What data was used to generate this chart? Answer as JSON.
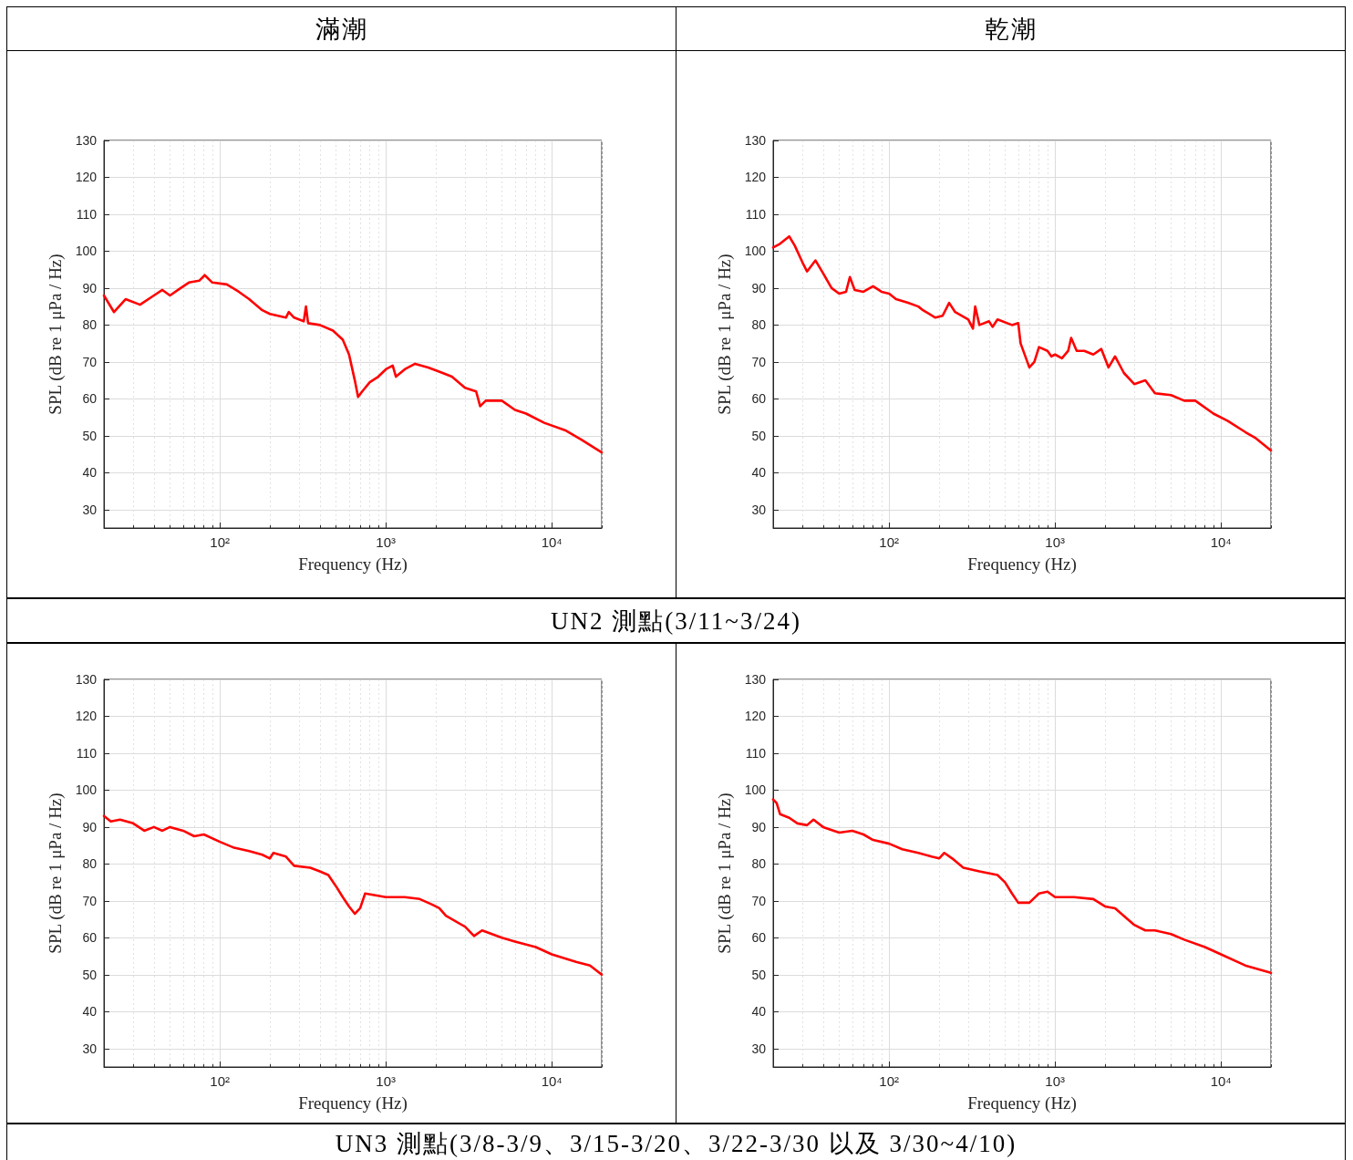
{
  "chart_data": [
    {
      "type": "line",
      "title": "滿潮",
      "annotations": [
        "UN2 測點(3/11~3/24)"
      ],
      "xlabel": "Frequency (Hz)",
      "ylabel": "SPL (dB re 1 μPa / Hz)",
      "log": "x",
      "grid": true,
      "xlim": [
        20,
        20000
      ],
      "xticks": [
        {
          "value": 100,
          "label": "10²"
        },
        {
          "value": 1000,
          "label": "10³"
        },
        {
          "value": 10000,
          "label": "10⁴"
        }
      ],
      "ylim": [
        25,
        130
      ],
      "yticks": [
        30,
        40,
        50,
        60,
        70,
        80,
        90,
        100,
        110,
        120,
        130
      ],
      "x": [
        20,
        23,
        27,
        33,
        40,
        45,
        50,
        58,
        65,
        75,
        81,
        90,
        110,
        130,
        150,
        180,
        200,
        250,
        260,
        280,
        320,
        330,
        340,
        400,
        480,
        550,
        600,
        650,
        680,
        720,
        800,
        900,
        1000,
        1100,
        1150,
        1300,
        1500,
        1800,
        2200,
        2500,
        3000,
        3500,
        3700,
        4000,
        5000,
        6000,
        7000,
        9000,
        12000,
        15000,
        20000
      ],
      "series": [
        {
          "color": "#ff0000",
          "values": [
            88,
            83.5,
            87,
            85.5,
            88,
            89.5,
            88,
            90,
            91.5,
            92,
            93.5,
            91.5,
            91,
            89,
            87,
            84,
            83,
            82,
            83.5,
            82,
            81,
            85,
            80.5,
            80,
            78.5,
            76,
            72,
            65,
            60.5,
            62,
            64.5,
            66,
            68,
            69,
            66,
            68,
            69.5,
            68.5,
            67,
            66,
            63,
            62,
            58,
            59.5,
            59.5,
            57,
            56,
            53.5,
            51.5,
            49,
            45.5
          ]
        }
      ]
    },
    {
      "type": "line",
      "title": "乾潮",
      "xlabel": "Frequency (Hz)",
      "ylabel": "SPL (dB re 1 μPa / Hz)",
      "log": "x",
      "grid": true,
      "xlim": [
        20,
        20000
      ],
      "xticks": [
        {
          "value": 100,
          "label": "10²"
        },
        {
          "value": 1000,
          "label": "10³"
        },
        {
          "value": 10000,
          "label": "10⁴"
        }
      ],
      "ylim": [
        25,
        130
      ],
      "yticks": [
        30,
        40,
        50,
        60,
        70,
        80,
        90,
        100,
        110,
        120,
        130
      ],
      "x": [
        20,
        22,
        25,
        27,
        30,
        32,
        36,
        40,
        45,
        50,
        55,
        58,
        62,
        70,
        80,
        90,
        100,
        110,
        130,
        150,
        160,
        190,
        210,
        230,
        250,
        300,
        320,
        330,
        350,
        400,
        420,
        450,
        550,
        600,
        620,
        700,
        750,
        800,
        900,
        950,
        1000,
        1100,
        1200,
        1250,
        1350,
        1500,
        1700,
        1900,
        2100,
        2300,
        2600,
        3000,
        3500,
        4000,
        5000,
        6000,
        7000,
        9000,
        11000,
        14000,
        16000,
        20000
      ],
      "series": [
        {
          "color": "#ff0000",
          "values": [
            101,
            102,
            104,
            101.5,
            97,
            94.5,
            97.5,
            94,
            90,
            88.5,
            89,
            93,
            89.5,
            89,
            90.5,
            89,
            88.5,
            87,
            86,
            85,
            84,
            82,
            82.5,
            86,
            83.5,
            81.5,
            79,
            85,
            80,
            81,
            79.5,
            81.5,
            80,
            80.5,
            75,
            68.5,
            70,
            74,
            73,
            71.5,
            72,
            71,
            73,
            76.5,
            73,
            73,
            72,
            73.5,
            68.5,
            71.5,
            67,
            64,
            65,
            61.5,
            61,
            59.5,
            59.5,
            56,
            54,
            51,
            49.5,
            46
          ]
        }
      ]
    },
    {
      "type": "line",
      "annotations": [
        "UN3 測點(3/8-3/9、3/15-3/20、3/22-3/30 以及 3/30~4/10)"
      ],
      "xlabel": "Frequency (Hz)",
      "ylabel": "SPL (dB re 1 μPa / Hz)",
      "log": "x",
      "grid": true,
      "xlim": [
        20,
        20000
      ],
      "xticks": [
        {
          "value": 100,
          "label": "10²"
        },
        {
          "value": 1000,
          "label": "10³"
        },
        {
          "value": 10000,
          "label": "10⁴"
        }
      ],
      "ylim": [
        25,
        130
      ],
      "yticks": [
        30,
        40,
        50,
        60,
        70,
        80,
        90,
        100,
        110,
        120,
        130
      ],
      "x": [
        20,
        22,
        25,
        30,
        35,
        40,
        45,
        50,
        60,
        70,
        80,
        100,
        120,
        150,
        180,
        200,
        210,
        250,
        280,
        350,
        400,
        450,
        500,
        550,
        600,
        650,
        700,
        750,
        1000,
        1300,
        1600,
        1900,
        2100,
        2300,
        3000,
        3400,
        3800,
        5000,
        6000,
        8000,
        10000,
        14000,
        17000,
        20000
      ],
      "series": [
        {
          "color": "#ff0000",
          "values": [
            93,
            91.5,
            92,
            91,
            89,
            90,
            89,
            90,
            89,
            87.5,
            88,
            86,
            84.5,
            83.5,
            82.5,
            81.5,
            83,
            82,
            79.5,
            79,
            78,
            77,
            74,
            71,
            68.5,
            66.5,
            68,
            72,
            71,
            71,
            70.5,
            69,
            68,
            66,
            63,
            60.5,
            62,
            60,
            59,
            57.5,
            55.5,
            53.5,
            52.5,
            50
          ]
        }
      ]
    },
    {
      "type": "line",
      "xlabel": "Frequency (Hz)",
      "ylabel": "SPL (dB re 1 μPa / Hz)",
      "log": "x",
      "grid": true,
      "xlim": [
        20,
        20000
      ],
      "xticks": [
        {
          "value": 100,
          "label": "10²"
        },
        {
          "value": 1000,
          "label": "10³"
        },
        {
          "value": 10000,
          "label": "10⁴"
        }
      ],
      "ylim": [
        25,
        130
      ],
      "yticks": [
        30,
        40,
        50,
        60,
        70,
        80,
        90,
        100,
        110,
        120,
        130
      ],
      "x": [
        20,
        21,
        22,
        25,
        28,
        32,
        35,
        40,
        50,
        60,
        70,
        80,
        100,
        120,
        150,
        180,
        200,
        215,
        240,
        280,
        350,
        450,
        500,
        550,
        600,
        700,
        800,
        900,
        1000,
        1300,
        1700,
        2000,
        2300,
        3000,
        3500,
        4000,
        5000,
        6000,
        8000,
        10000,
        14000,
        20000
      ],
      "series": [
        {
          "color": "#ff0000",
          "values": [
            97.5,
            96.5,
            93.5,
            92.5,
            91,
            90.5,
            92,
            90,
            88.5,
            89,
            88,
            86.5,
            85.5,
            84,
            83,
            82,
            81.5,
            83,
            81.5,
            79,
            78,
            77,
            75,
            72,
            69.5,
            69.5,
            72,
            72.5,
            71,
            71,
            70.5,
            68.5,
            68,
            63.5,
            62,
            62,
            61,
            59.5,
            57.5,
            55.5,
            52.5,
            50.5
          ]
        }
      ]
    }
  ]
}
